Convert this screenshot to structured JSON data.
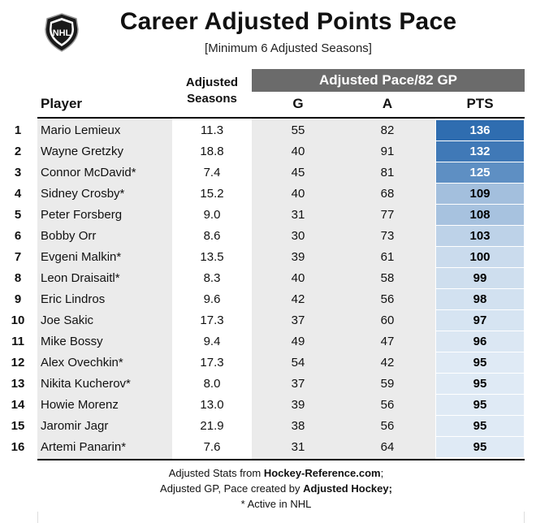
{
  "header": {
    "logo_text": "NHL",
    "title": "Career Adjusted Points Pace",
    "subtitle": "[Minimum 6 Adjusted Seasons]",
    "group_label": "Adjusted Pace/82 GP"
  },
  "columns": {
    "player": "Player",
    "adjusted_seasons_line1": "Adjusted",
    "adjusted_seasons_line2": "Seasons",
    "g": "G",
    "a": "A",
    "pts": "PTS"
  },
  "colors": {
    "group_header_bg": "#6b6b6b",
    "band_gray": "#ebebeb",
    "pts_scale_low": "#dfeaf5",
    "pts_scale_high": "#2f6db0"
  },
  "chart_data": {
    "type": "table",
    "title": "Career Adjusted Points Pace",
    "subtitle": "[Minimum 6 Adjusted Seasons]",
    "columns": [
      "",
      "Player",
      "Adjusted Seasons",
      "G",
      "A",
      "PTS"
    ],
    "rows": [
      {
        "rank": "1",
        "player": "Mario Lemieux",
        "adj_seasons": "11.3",
        "g": "55",
        "a": "82",
        "pts": "136"
      },
      {
        "rank": "2",
        "player": "Wayne Gretzky",
        "adj_seasons": "18.8",
        "g": "40",
        "a": "91",
        "pts": "132"
      },
      {
        "rank": "3",
        "player": "Connor McDavid*",
        "adj_seasons": "7.4",
        "g": "45",
        "a": "81",
        "pts": "125"
      },
      {
        "rank": "4",
        "player": "Sidney Crosby*",
        "adj_seasons": "15.2",
        "g": "40",
        "a": "68",
        "pts": "109"
      },
      {
        "rank": "5",
        "player": "Peter Forsberg",
        "adj_seasons": "9.0",
        "g": "31",
        "a": "77",
        "pts": "108"
      },
      {
        "rank": "6",
        "player": "Bobby Orr",
        "adj_seasons": "8.6",
        "g": "30",
        "a": "73",
        "pts": "103"
      },
      {
        "rank": "7",
        "player": "Evgeni Malkin*",
        "adj_seasons": "13.5",
        "g": "39",
        "a": "61",
        "pts": "100"
      },
      {
        "rank": "8",
        "player": "Leon Draisaitl*",
        "adj_seasons": "8.3",
        "g": "40",
        "a": "58",
        "pts": "99"
      },
      {
        "rank": "9",
        "player": "Eric Lindros",
        "adj_seasons": "9.6",
        "g": "42",
        "a": "56",
        "pts": "98"
      },
      {
        "rank": "10",
        "player": "Joe Sakic",
        "adj_seasons": "17.3",
        "g": "37",
        "a": "60",
        "pts": "97"
      },
      {
        "rank": "11",
        "player": "Mike Bossy",
        "adj_seasons": "9.4",
        "g": "49",
        "a": "47",
        "pts": "96"
      },
      {
        "rank": "12",
        "player": "Alex Ovechkin*",
        "adj_seasons": "17.3",
        "g": "54",
        "a": "42",
        "pts": "95"
      },
      {
        "rank": "13",
        "player": "Nikita Kucherov*",
        "adj_seasons": "8.0",
        "g": "37",
        "a": "59",
        "pts": "95"
      },
      {
        "rank": "14",
        "player": "Howie Morenz",
        "adj_seasons": "13.0",
        "g": "39",
        "a": "56",
        "pts": "95"
      },
      {
        "rank": "15",
        "player": "Jaromir Jagr",
        "adj_seasons": "21.9",
        "g": "38",
        "a": "56",
        "pts": "95"
      },
      {
        "rank": "16",
        "player": "Artemi Panarin*",
        "adj_seasons": "7.6",
        "g": "31",
        "a": "64",
        "pts": "95"
      }
    ]
  },
  "footer": {
    "line1_prefix": "Adjusted Stats from ",
    "line1_source": "Hockey-Reference.com",
    "line1_suffix": ";",
    "line2_prefix": "Adjusted GP, Pace created by ",
    "line2_source": "Adjusted Hockey;",
    "line3": "* Active in NHL"
  }
}
